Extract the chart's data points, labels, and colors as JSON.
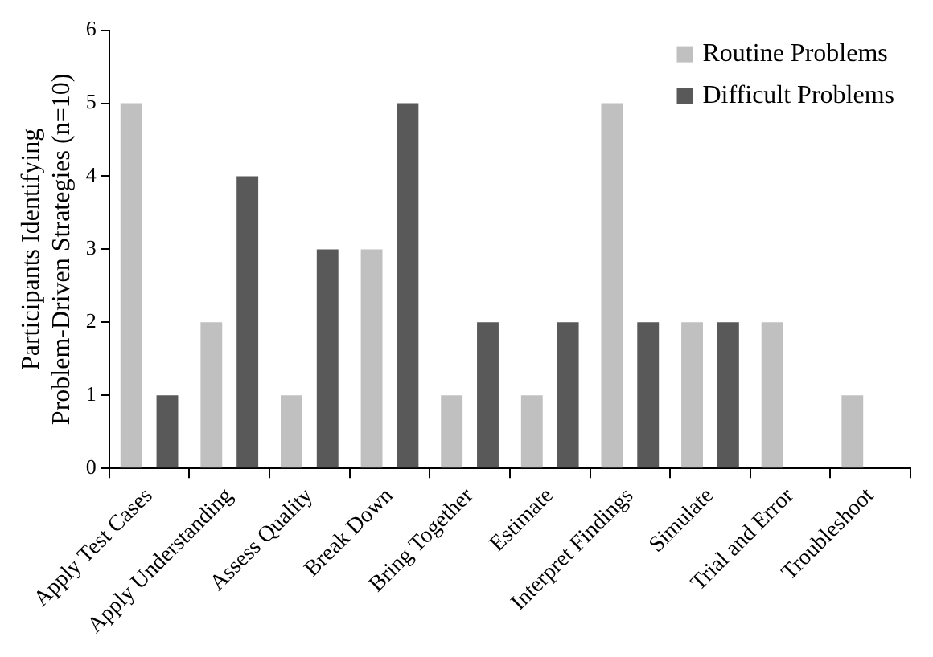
{
  "chart_data": {
    "type": "bar",
    "ylabel": "Participants Identifying\nProblem-Driven Strategies (n=10)",
    "categories": [
      "Apply Test Cases",
      "Apply Understanding",
      "Assess Quality",
      "Break Down",
      "Bring Together",
      "Estimate",
      "Interpret Findings",
      "Simulate",
      "Trial and Error",
      "Troubleshoot"
    ],
    "series": [
      {
        "name": "Routine Problems",
        "color": "#c0c0c0",
        "values": [
          5,
          2,
          1,
          3,
          1,
          1,
          5,
          2,
          2,
          1
        ]
      },
      {
        "name": "Difficult Problems",
        "color": "#595959",
        "values": [
          1,
          4,
          3,
          5,
          2,
          2,
          2,
          2,
          0,
          0
        ]
      }
    ],
    "ylim": [
      0,
      6
    ],
    "yticks": [
      0,
      1,
      2,
      3,
      4,
      5,
      6
    ],
    "grid": false,
    "legend": "top right"
  }
}
